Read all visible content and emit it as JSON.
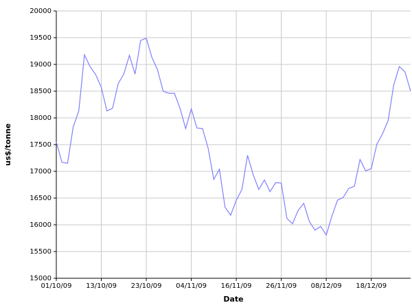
{
  "chart_data": {
    "type": "line",
    "x_label": "Date",
    "y_label": "us$/tonne",
    "x": [
      "01/10/09",
      "02/10/09",
      "05/10/09",
      "06/10/09",
      "07/10/09",
      "08/10/09",
      "09/10/09",
      "12/10/09",
      "13/10/09",
      "14/10/09",
      "15/10/09",
      "16/10/09",
      "19/10/09",
      "20/10/09",
      "21/10/09",
      "22/10/09",
      "23/10/09",
      "26/10/09",
      "27/10/09",
      "28/10/09",
      "29/10/09",
      "30/10/09",
      "02/11/09",
      "03/11/09",
      "04/11/09",
      "05/11/09",
      "06/11/09",
      "09/11/09",
      "10/11/09",
      "11/11/09",
      "12/11/09",
      "13/11/09",
      "16/11/09",
      "17/11/09",
      "18/11/09",
      "19/11/09",
      "20/11/09",
      "23/11/09",
      "24/11/09",
      "25/11/09",
      "26/11/09",
      "27/11/09",
      "30/11/09",
      "01/12/09",
      "02/12/09",
      "03/12/09",
      "04/12/09",
      "07/12/09",
      "08/12/09",
      "09/12/09",
      "10/12/09",
      "11/12/09",
      "14/12/09",
      "15/12/09",
      "16/12/09",
      "17/12/09",
      "18/12/09",
      "21/12/09",
      "22/12/09",
      "23/12/09",
      "24/12/09",
      "28/12/09",
      "29/12/09",
      "30/12/09"
    ],
    "series": [
      {
        "name": "us$/tonne",
        "color": "#7f7fff",
        "values": [
          17550,
          17170,
          17150,
          17830,
          18130,
          19180,
          18960,
          18810,
          18570,
          18130,
          18180,
          18640,
          18820,
          19170,
          18820,
          19450,
          19490,
          19130,
          18900,
          18500,
          18460,
          18460,
          18180,
          17800,
          18170,
          17810,
          17800,
          17430,
          16850,
          17040,
          16330,
          16180,
          16460,
          16660,
          17300,
          16940,
          16660,
          16840,
          16620,
          16790,
          16780,
          16120,
          16020,
          16270,
          16400,
          16060,
          15900,
          15970,
          15810,
          16160,
          16460,
          16510,
          16680,
          16720,
          17220,
          17010,
          17050,
          17510,
          17700,
          17950,
          18620,
          18960,
          18860,
          18500
        ]
      }
    ],
    "xticks": [
      "01/10/09",
      "13/10/09",
      "23/10/09",
      "04/11/09",
      "16/11/09",
      "26/11/09",
      "08/12/09",
      "18/12/09"
    ],
    "ylim": [
      15000,
      20000
    ],
    "yticks": [
      15000,
      15500,
      16000,
      16500,
      17000,
      17500,
      18000,
      18500,
      19000,
      19500,
      20000
    ],
    "grid": true
  }
}
